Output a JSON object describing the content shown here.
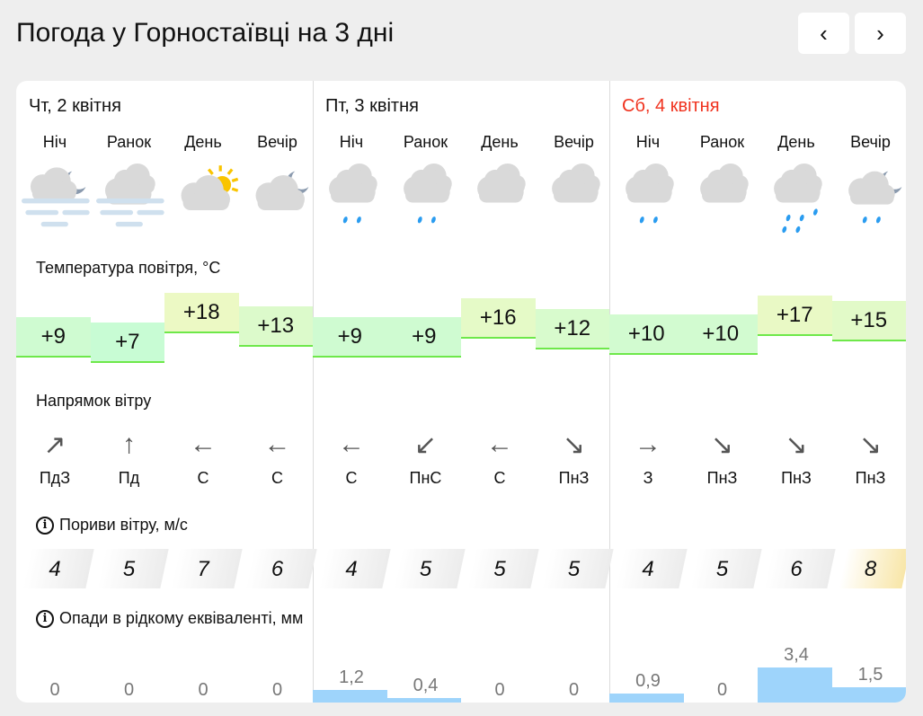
{
  "title": "Погода у Горностаївці на 3 дні",
  "nav": {
    "prev": "‹",
    "next": "›"
  },
  "days": [
    {
      "name": "Чт, 2 квітня",
      "weekend": false
    },
    {
      "name": "Пт, 3 квітня",
      "weekend": false
    },
    {
      "name": "Сб, 4 квітня",
      "weekend": true
    }
  ],
  "weekend_color": "#f0321e",
  "slot_labels": [
    "Ніч",
    "Ранок",
    "День",
    "Вечір"
  ],
  "sections": {
    "temp": "Температура повітря, °C",
    "wind": "Напрямок вітру",
    "gust": "Пориви вітру, м/с",
    "precip": "Опади в рідкому еквіваленті, мм"
  },
  "slots": [
    {
      "icon": "fog-night",
      "temp": "+9",
      "arrow": "↗",
      "dir": "ПдЗ",
      "gust": "4",
      "precip": "0"
    },
    {
      "icon": "fog-cloudy",
      "temp": "+7",
      "arrow": "↑",
      "dir": "Пд",
      "gust": "5",
      "precip": "0"
    },
    {
      "icon": "partly-sunny",
      "temp": "+18",
      "arrow": "←",
      "dir": "С",
      "gust": "7",
      "precip": "0"
    },
    {
      "icon": "partly-cloudy-night",
      "temp": "+13",
      "arrow": "←",
      "dir": "С",
      "gust": "6",
      "precip": "0"
    },
    {
      "icon": "cloudy-light-rain",
      "temp": "+9",
      "arrow": "←",
      "dir": "С",
      "gust": "4",
      "precip": "1,2"
    },
    {
      "icon": "cloudy-light-rain",
      "temp": "+9",
      "arrow": "↙",
      "dir": "ПнС",
      "gust": "5",
      "precip": "0,4"
    },
    {
      "icon": "cloudy",
      "temp": "+16",
      "arrow": "←",
      "dir": "С",
      "gust": "5",
      "precip": "0"
    },
    {
      "icon": "cloudy",
      "temp": "+12",
      "arrow": "↘",
      "dir": "ПнЗ",
      "gust": "5",
      "precip": "0"
    },
    {
      "icon": "cloudy-light-rain",
      "temp": "+10",
      "arrow": "→",
      "dir": "З",
      "gust": "4",
      "precip": "0,9"
    },
    {
      "icon": "cloudy",
      "temp": "+10",
      "arrow": "↘",
      "dir": "ПнЗ",
      "gust": "5",
      "precip": "0"
    },
    {
      "icon": "cloudy-rain",
      "temp": "+17",
      "arrow": "↘",
      "dir": "ПнЗ",
      "gust": "6",
      "precip": "3,4"
    },
    {
      "icon": "rain-night",
      "temp": "+15",
      "arrow": "↘",
      "dir": "ПнЗ",
      "gust": "8",
      "precip": "1,5"
    }
  ]
}
